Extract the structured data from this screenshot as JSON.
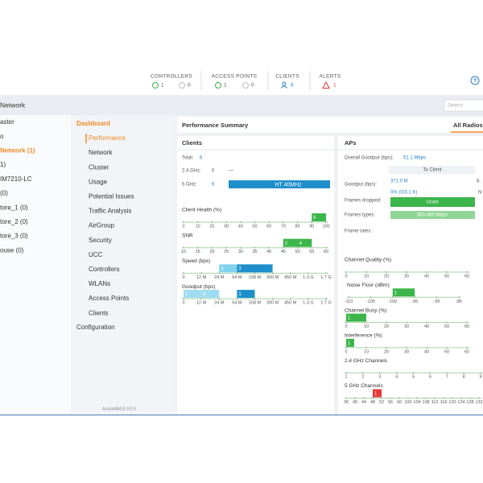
{
  "topbar": {
    "items": [
      {
        "label": "CONTROLLERS",
        "up": 1,
        "down": 0
      },
      {
        "label": "ACCESS POINTS",
        "up": 1,
        "down": 0
      },
      {
        "label": "CLIENTS",
        "count": 6
      },
      {
        "label": "ALERTS",
        "count": 1
      }
    ],
    "help": "?"
  },
  "navbar": {
    "title": "Network",
    "search": "Search"
  },
  "tree": [
    {
      "label": "aster",
      "selected": false
    },
    {
      "label": "o",
      "selected": false
    },
    {
      "label": "Network (1)",
      "selected": true
    },
    {
      "label": "1)",
      "selected": false
    },
    {
      "label": "IM7210-LC",
      "selected": false
    },
    {
      "label": "(0)",
      "selected": false
    },
    {
      "label": "tore_1 (0)",
      "selected": false
    },
    {
      "label": "tore_2 (0)",
      "selected": false
    },
    {
      "label": "tore_3 (0)",
      "selected": false
    },
    {
      "label": "ouse (0)",
      "selected": false
    }
  ],
  "menu": {
    "title": "Dashboard",
    "items": [
      {
        "label": "Performance",
        "selected": true
      },
      {
        "label": "Network",
        "selected": false
      },
      {
        "label": "Cluster",
        "selected": false
      },
      {
        "label": "Usage",
        "selected": false
      },
      {
        "label": "Potential Issues",
        "selected": false
      },
      {
        "label": "Traffic Analysis",
        "selected": false
      },
      {
        "label": "AirGroup",
        "selected": false
      },
      {
        "label": "Security",
        "selected": false
      },
      {
        "label": "UCC",
        "selected": false
      },
      {
        "label": "Controllers",
        "selected": false
      },
      {
        "label": "WLANs",
        "selected": false
      },
      {
        "label": "Access Points",
        "selected": false
      },
      {
        "label": "Clients",
        "selected": false
      }
    ],
    "configuration": "Configuration",
    "version": "ArubaMM,8.0.0.0"
  },
  "summary": {
    "title": "Performance Summary",
    "tab": "All Radios"
  },
  "clients": {
    "title": "Clients",
    "total_label": "Total:",
    "total": 6,
    "ghz24_label": "2.4 GHz:",
    "ghz24": 0,
    "ghz24_bar": "—",
    "ghz5_label": "5 GHz:",
    "ghz5": 6,
    "ghz5_bar": "HT 40MHz",
    "charts": [
      {
        "title": "Client Health (%)",
        "ticks": [
          0,
          10,
          20,
          30,
          40,
          50,
          60,
          70,
          80,
          90,
          100
        ],
        "bars": [
          {
            "start": 90,
            "end": 100,
            "count": 6,
            "color": "#3cb54a"
          }
        ]
      },
      {
        "title": "SNR",
        "ticks": [
          10,
          15,
          20,
          25,
          30,
          35,
          40,
          45,
          50,
          55,
          60
        ],
        "bars": [
          {
            "start": 45,
            "end": 50,
            "count": 2,
            "color": "#3cb54a"
          },
          {
            "start": 50,
            "end": 55,
            "count": 4,
            "color": "#3cb54a"
          }
        ]
      },
      {
        "title": "Speed (bps)",
        "ticks": [
          0,
          {
            "value": 12,
            "label": "12 M"
          },
          {
            "value": 24,
            "label": "24 M"
          },
          {
            "value": 54,
            "label": "54 M"
          },
          {
            "value": 108,
            "label": "108 M"
          },
          {
            "value": 300,
            "label": "300 M"
          },
          {
            "value": 450,
            "label": "450 M"
          },
          {
            "value": 1300,
            "label": "1.3 G"
          },
          {
            "value": 1700,
            "label": "1.7 G"
          }
        ],
        "bars": [
          {
            "start": 24,
            "end": 54,
            "count": 3,
            "color": "#7fd1ec"
          },
          {
            "start": 54,
            "end": 300,
            "count": 3,
            "color": "#1e8fcb"
          }
        ]
      },
      {
        "title": "Goodput (bps)",
        "ticks": [
          0,
          {
            "value": 12,
            "label": "12 M"
          },
          {
            "value": 24,
            "label": "24 M"
          },
          {
            "value": 54,
            "label": "54 M"
          },
          {
            "value": 108,
            "label": "108 M"
          },
          {
            "value": 300,
            "label": "300 M"
          },
          {
            "value": 450,
            "label": "450 M"
          },
          {
            "value": 1300,
            "label": "1.3 G"
          },
          {
            "value": 1700,
            "label": "1.7 G"
          }
        ],
        "bars": [
          {
            "start": 0,
            "end": 12,
            "count": 1,
            "color": "#9fdcf1"
          },
          {
            "start": 12,
            "end": 24,
            "count": 4,
            "color": "#9fdcf1"
          },
          {
            "start": 54,
            "end": 108,
            "count": 1,
            "color": "#1e8fcb"
          }
        ]
      }
    ]
  },
  "aps": {
    "title": "APs",
    "overall_label": "Overall Goodput (bps):",
    "overall": "51.1 Mbps",
    "column": "To Client",
    "goodput_label": "Goodput (bps):",
    "goodput": "371.0 M",
    "dropped_value": "0% (0/3.1 K)",
    "dropped_label": "Frames dropped:",
    "dropped_bar": "Ucast",
    "types_label": "Frames types:",
    "types_bar": "300-450 Mbps",
    "rates_label": "Frame rates:",
    "cut_values": [
      "8.",
      "N"
    ],
    "charts": [
      {
        "title": "Channel Quality (%)",
        "ticks": [
          0,
          10,
          20,
          30,
          40,
          50,
          60
        ],
        "bars": []
      },
      {
        "title": "Noise Floor (dBm)",
        "ticks": [
          -110,
          -105,
          -100,
          -95,
          -90,
          -85
        ],
        "bars": [
          {
            "start": -100,
            "end": -95,
            "count": 1,
            "color": "#3cb54a"
          }
        ]
      },
      {
        "title": "Channel Busy (%)",
        "ticks": [
          0,
          10,
          20,
          30,
          40,
          50,
          60
        ],
        "bars": [
          {
            "start": 0,
            "end": 10,
            "count": 1,
            "color": "#3cb54a"
          }
        ]
      },
      {
        "title": "Interference (%)",
        "ticks": [
          0,
          10,
          20,
          30,
          40,
          50,
          60
        ],
        "bars": [
          {
            "start": 0,
            "end": 4,
            "count": 1,
            "color": "#3cb54a"
          }
        ]
      },
      {
        "title": "2.4 GHz Channels",
        "ticks": [
          1,
          2,
          3,
          4,
          5,
          6,
          7,
          8,
          9
        ],
        "bars": []
      },
      {
        "title": "5 GHz Channels",
        "ticks": [
          36,
          40,
          44,
          48,
          52,
          56,
          60,
          100,
          104,
          108,
          112,
          116,
          120,
          124,
          128,
          132
        ],
        "bars": [
          {
            "start": 48,
            "end": 52,
            "count": 1,
            "color": "#e53935"
          }
        ]
      }
    ]
  }
}
